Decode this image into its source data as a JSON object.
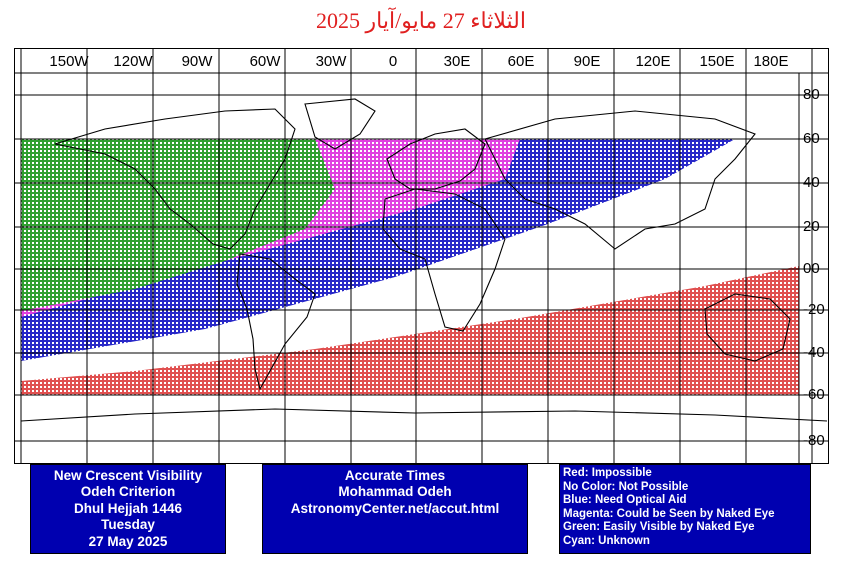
{
  "title": "الثلاثاء 27 مايو/آيار 2025",
  "map": {
    "longitude_labels": [
      "150W",
      "120W",
      "90W",
      "60W",
      "30W",
      "0",
      "30E",
      "60E",
      "90E",
      "120E",
      "150E",
      "180E"
    ],
    "latitude_labels": [
      "80",
      "60",
      "40",
      "20",
      "00",
      "-20",
      "-40",
      "-60",
      "-80"
    ],
    "colors": {
      "impossible": "#e05050",
      "optical_aid": "#2828c8",
      "naked_eye": "#e040e0",
      "easily_visible": "#30a030"
    }
  },
  "info_left": {
    "line1": "New Crescent Visibility",
    "line2": "Odeh Criterion",
    "line3": "Dhul Hejjah 1446",
    "line4": "Tuesday",
    "line5": "27 May 2025"
  },
  "info_mid": {
    "line1": "Accurate Times",
    "line2": "Mohammad Odeh",
    "line3": "AstronomyCenter.net/accut.html"
  },
  "legend": {
    "red": "Red: Impossible",
    "none": "No Color: Not Possible",
    "blue": "Blue: Need Optical Aid",
    "magenta": "Magenta: Could be Seen by Naked Eye",
    "green": "Green: Easily Visible by Naked Eye",
    "cyan": "Cyan: Unknown"
  }
}
